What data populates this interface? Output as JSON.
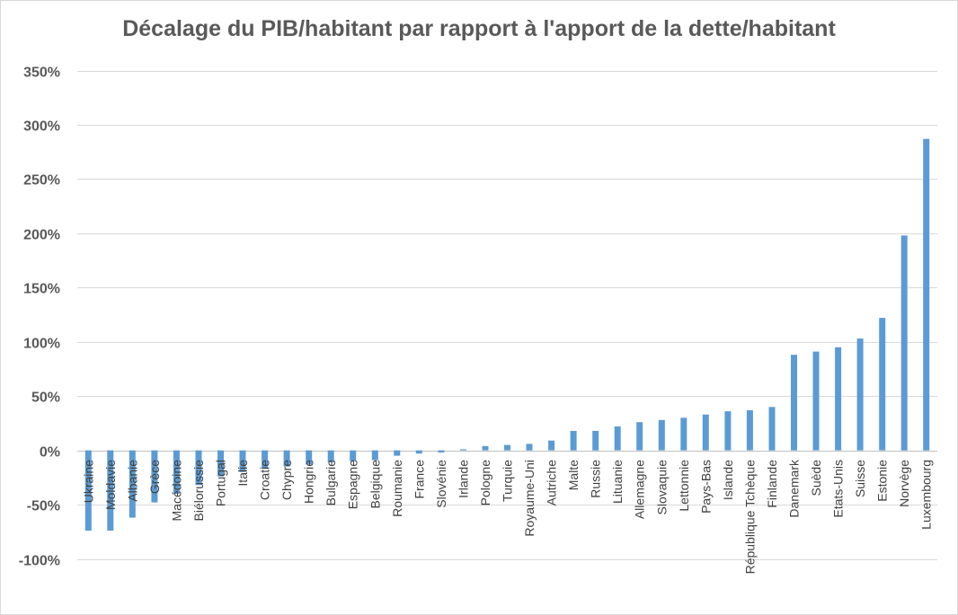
{
  "chart_data": {
    "type": "bar",
    "title": "Décalage du PIB/habitant par rapport à l'apport de la dette/habitant",
    "xlabel": "",
    "ylabel": "",
    "ylim": [
      -100,
      350
    ],
    "yticks": [
      -100,
      -50,
      0,
      50,
      100,
      150,
      200,
      250,
      300,
      350
    ],
    "ytick_labels": [
      "-100%",
      "-50%",
      "0%",
      "50%",
      "100%",
      "150%",
      "200%",
      "250%",
      "300%",
      "350%"
    ],
    "grid": true,
    "legend": "none",
    "bar_color": "#5b9bd5",
    "categories": [
      "Ukraine",
      "Moldavie",
      "Albanie",
      "Grèce",
      "Macédoine",
      "Biélorussie",
      "Portugal",
      "Italie",
      "Croatie",
      "Chypre",
      "Hongrie",
      "Bulgarie",
      "Espagne",
      "Belgique",
      "Roumanie",
      "France",
      "Slovénie",
      "Irlande",
      "Pologne",
      "Turquie",
      "Royaume-Uni",
      "Autriche",
      "Malte",
      "Russie",
      "Lituanie",
      "Allemagne",
      "Slovaquie",
      "Lettonnie",
      "Pays-Bas",
      "Islande",
      "République Tchèque",
      "Finlande",
      "Danemark",
      "Suède",
      "Etats-Unis",
      "Suisse",
      "Estonie",
      "Norvège",
      "Luxembourg"
    ],
    "values": [
      -74,
      -74,
      -62,
      -48,
      -40,
      -32,
      -24,
      -20,
      -17,
      -15,
      -13,
      -11,
      -10,
      -9,
      -5,
      -3,
      -2,
      1,
      4,
      5,
      6,
      9,
      18,
      18,
      22,
      26,
      28,
      30,
      33,
      36,
      37,
      40,
      88,
      91,
      95,
      103,
      122,
      198,
      287
    ]
  }
}
